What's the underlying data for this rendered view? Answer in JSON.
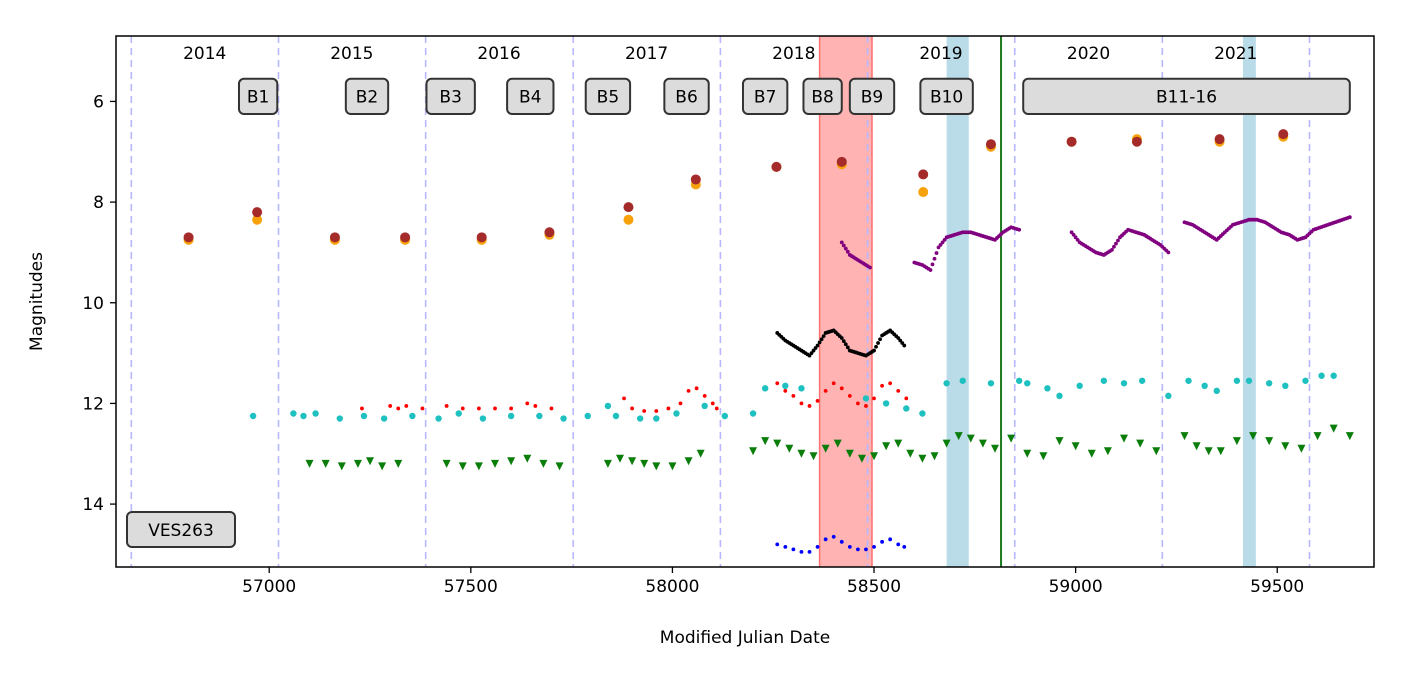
{
  "chart_data": {
    "type": "scatter",
    "title": "",
    "xlabel": "Modified Julian Date",
    "ylabel": "Magnitudes",
    "xlim": [
      56620,
      59740
    ],
    "ylim": [
      15.25,
      4.7
    ],
    "y_inverted": true,
    "x_ticks": [
      57000,
      57500,
      58000,
      58500,
      59000,
      59500
    ],
    "y_ticks": [
      6,
      8,
      10,
      12,
      14
    ],
    "year_dividers": [
      56658,
      57023,
      57388,
      57754,
      58119,
      58484,
      58849,
      59215,
      59580
    ],
    "years": [
      {
        "label": "2014",
        "x": 56840
      },
      {
        "label": "2015",
        "x": 57205
      },
      {
        "label": "2016",
        "x": 57570
      },
      {
        "label": "2017",
        "x": 57936
      },
      {
        "label": "2018",
        "x": 58301
      },
      {
        "label": "2019",
        "x": 58666
      },
      {
        "label": "2020",
        "x": 59032
      },
      {
        "label": "2021",
        "x": 59397
      }
    ],
    "block_labels": [
      {
        "label": "B1",
        "x0": 56925,
        "x1": 57020
      },
      {
        "label": "B2",
        "x0": 57190,
        "x1": 57295
      },
      {
        "label": "B3",
        "x0": 57390,
        "x1": 57510
      },
      {
        "label": "B4",
        "x0": 57590,
        "x1": 57705
      },
      {
        "label": "B5",
        "x0": 57785,
        "x1": 57895
      },
      {
        "label": "B6",
        "x0": 57980,
        "x1": 58090
      },
      {
        "label": "B7",
        "x0": 58175,
        "x1": 58285
      },
      {
        "label": "B8",
        "x0": 58325,
        "x1": 58420
      },
      {
        "label": "B9",
        "x0": 58440,
        "x1": 58550
      },
      {
        "label": "B10",
        "x0": 58615,
        "x1": 58745
      },
      {
        "label": "B11-16",
        "x0": 58870,
        "x1": 59680
      }
    ],
    "object_label": "VES263",
    "shaded_regions": [
      {
        "name": "red-band",
        "x0": 58365,
        "x1": 58495,
        "color": "#ff9999"
      },
      {
        "name": "blue-band-1",
        "x0": 58680,
        "x1": 58735,
        "color": "#a9d3e3"
      },
      {
        "name": "blue-band-2",
        "x0": 59415,
        "x1": 59447,
        "color": "#a9d3e3"
      }
    ],
    "vertical_line": {
      "x": 58815,
      "color": "#1e7a1e"
    },
    "colors": {
      "orange": "#f7a20b",
      "brown": "#a52a2a",
      "purple": "#800080",
      "black": "#000000",
      "cyan": "#1ec0c0",
      "red": "#ff0000",
      "green": "#0a7d0a",
      "blue": "#0000ff",
      "year_line": "#b8b8ff",
      "label_box": "#dcdcdc"
    },
    "series": [
      {
        "name": "orange",
        "marker": "circle",
        "x": [
          56800,
          56970,
          57163,
          57337,
          57527,
          57695,
          57891,
          58058,
          58258,
          58420,
          58622,
          58790,
          58990,
          59152,
          59357,
          59515
        ],
        "y": [
          8.75,
          8.35,
          8.75,
          8.75,
          8.75,
          8.65,
          8.35,
          7.65,
          7.3,
          7.25,
          7.8,
          6.9,
          6.8,
          6.75,
          6.8,
          6.7
        ]
      },
      {
        "name": "brown",
        "marker": "circle",
        "x": [
          56800,
          56970,
          57163,
          57337,
          57527,
          57695,
          57891,
          58058,
          58258,
          58420,
          58622,
          58790,
          58990,
          59152,
          59357,
          59515
        ],
        "y": [
          8.7,
          8.2,
          8.7,
          8.7,
          8.7,
          8.6,
          8.1,
          7.55,
          7.3,
          7.2,
          7.45,
          6.85,
          6.8,
          6.8,
          6.75,
          6.65
        ]
      },
      {
        "name": "purple",
        "marker": "dot",
        "segments": [
          {
            "x": [
              58420,
              58440,
              58460,
              58480,
              58490
            ],
            "y": [
              8.8,
              9.05,
              9.15,
              9.25,
              9.3
            ]
          },
          {
            "x": [
              58600,
              58620,
              58640,
              58660,
              58680,
              58700,
              58720,
              58740,
              58760,
              58780,
              58800,
              58820,
              58840,
              58860
            ],
            "y": [
              9.2,
              9.25,
              9.35,
              8.9,
              8.7,
              8.65,
              8.6,
              8.6,
              8.65,
              8.7,
              8.75,
              8.6,
              8.5,
              8.55
            ]
          },
          {
            "x": [
              58990,
              59010,
              59030,
              59050,
              59070,
              59090,
              59110,
              59130,
              59150,
              59170,
              59190,
              59210,
              59230
            ],
            "y": [
              8.6,
              8.8,
              8.9,
              9.0,
              9.05,
              8.95,
              8.7,
              8.55,
              8.6,
              8.65,
              8.75,
              8.85,
              9.0
            ]
          },
          {
            "x": [
              59270,
              59290,
              59310,
              59330,
              59350,
              59370,
              59390,
              59410,
              59430,
              59450,
              59470,
              59490,
              59510,
              59530,
              59550,
              59570,
              59590,
              59680
            ],
            "y": [
              8.4,
              8.45,
              8.55,
              8.65,
              8.75,
              8.6,
              8.45,
              8.4,
              8.35,
              8.35,
              8.4,
              8.5,
              8.6,
              8.65,
              8.75,
              8.7,
              8.55,
              8.3
            ]
          }
        ]
      },
      {
        "name": "black",
        "marker": "dot",
        "segments": [
          {
            "x": [
              58260,
              58280,
              58300,
              58320,
              58340,
              58360,
              58380,
              58400,
              58420,
              58440,
              58460,
              58480,
              58500,
              58520,
              58540,
              58560,
              58575
            ],
            "y": [
              10.6,
              10.75,
              10.85,
              10.95,
              11.05,
              10.85,
              10.6,
              10.55,
              10.7,
              10.95,
              11.0,
              11.05,
              10.95,
              10.65,
              10.55,
              10.7,
              10.85
            ]
          }
        ]
      },
      {
        "name": "cyan",
        "marker": "circle-small",
        "x": [
          56960,
          57060,
          57085,
          57115,
          57175,
          57235,
          57285,
          57355,
          57420,
          57470,
          57530,
          57600,
          57670,
          57730,
          57790,
          57840,
          57860,
          57920,
          57960,
          58010,
          58080,
          58130,
          58200,
          58230,
          58280,
          58320,
          58480,
          58530,
          58580,
          58620,
          58680,
          58720,
          58790,
          58860,
          58880,
          58930,
          58960,
          59010,
          59070,
          59120,
          59165,
          59230,
          59280,
          59320,
          59350,
          59400,
          59430,
          59480,
          59520,
          59570,
          59610,
          59640
        ],
        "y": [
          12.25,
          12.2,
          12.25,
          12.2,
          12.3,
          12.25,
          12.3,
          12.25,
          12.3,
          12.2,
          12.3,
          12.25,
          12.25,
          12.3,
          12.25,
          12.05,
          12.25,
          12.3,
          12.3,
          12.2,
          12.05,
          12.25,
          12.2,
          11.7,
          11.65,
          11.7,
          11.9,
          12.0,
          12.1,
          12.2,
          11.6,
          11.55,
          11.6,
          11.55,
          11.6,
          11.7,
          11.85,
          11.65,
          11.55,
          11.6,
          11.55,
          11.85,
          11.55,
          11.65,
          11.75,
          11.55,
          11.55,
          11.6,
          11.65,
          11.55,
          11.45,
          11.45
        ]
      },
      {
        "name": "red",
        "marker": "dot",
        "x": [
          57230,
          57300,
          57320,
          57340,
          57380,
          57440,
          57480,
          57520,
          57560,
          57600,
          57640,
          57660,
          57700,
          57880,
          57900,
          57930,
          57960,
          57990,
          58020,
          58040,
          58060,
          58080,
          58100,
          58110,
          58260,
          58280,
          58300,
          58320,
          58340,
          58360,
          58380,
          58400,
          58420,
          58440,
          58460,
          58480,
          58500,
          58520,
          58540,
          58560,
          58580
        ],
        "y": [
          12.1,
          12.05,
          12.1,
          12.05,
          12.1,
          12.05,
          12.1,
          12.1,
          12.1,
          12.1,
          12.0,
          12.05,
          12.1,
          11.9,
          12.1,
          12.15,
          12.15,
          12.1,
          12.0,
          11.75,
          11.7,
          11.85,
          12.0,
          12.1,
          11.6,
          11.75,
          11.85,
          12.0,
          12.05,
          11.95,
          11.75,
          11.6,
          11.7,
          11.85,
          12.0,
          12.05,
          11.9,
          11.65,
          11.6,
          11.75,
          11.9
        ]
      },
      {
        "name": "green",
        "marker": "triangle",
        "x": [
          57100,
          57140,
          57180,
          57220,
          57250,
          57280,
          57320,
          57440,
          57480,
          57520,
          57560,
          57600,
          57640,
          57680,
          57720,
          57840,
          57870,
          57900,
          57930,
          57960,
          58000,
          58040,
          58070,
          58200,
          58230,
          58260,
          58290,
          58320,
          58350,
          58380,
          58410,
          58440,
          58470,
          58500,
          58530,
          58560,
          58590,
          58620,
          58650,
          58680,
          58710,
          58740,
          58770,
          58800,
          58840,
          58880,
          58920,
          58960,
          59000,
          59040,
          59080,
          59120,
          59160,
          59200,
          59270,
          59300,
          59330,
          59360,
          59400,
          59440,
          59480,
          59520,
          59560,
          59600,
          59640,
          59680
        ],
        "y": [
          13.2,
          13.2,
          13.25,
          13.2,
          13.15,
          13.25,
          13.2,
          13.2,
          13.25,
          13.25,
          13.2,
          13.15,
          13.1,
          13.2,
          13.25,
          13.2,
          13.1,
          13.15,
          13.2,
          13.25,
          13.25,
          13.15,
          13.0,
          12.95,
          12.75,
          12.8,
          12.9,
          13.0,
          13.05,
          12.9,
          12.8,
          13.0,
          13.1,
          13.05,
          12.85,
          12.8,
          13.0,
          13.1,
          13.05,
          12.8,
          12.65,
          12.7,
          12.8,
          12.9,
          12.7,
          13.0,
          13.05,
          12.75,
          12.85,
          13.0,
          12.95,
          12.7,
          12.8,
          12.95,
          12.65,
          12.85,
          12.95,
          12.95,
          12.75,
          12.65,
          12.75,
          12.85,
          12.9,
          12.65,
          12.5,
          12.65
        ]
      },
      {
        "name": "blue",
        "marker": "dot",
        "x": [
          58260,
          58280,
          58300,
          58320,
          58340,
          58360,
          58380,
          58400,
          58420,
          58440,
          58460,
          58480,
          58500,
          58520,
          58540,
          58560,
          58575
        ],
        "y": [
          14.8,
          14.85,
          14.9,
          14.95,
          14.95,
          14.85,
          14.7,
          14.65,
          14.75,
          14.85,
          14.9,
          14.9,
          14.85,
          14.75,
          14.7,
          14.8,
          14.85
        ]
      }
    ]
  }
}
